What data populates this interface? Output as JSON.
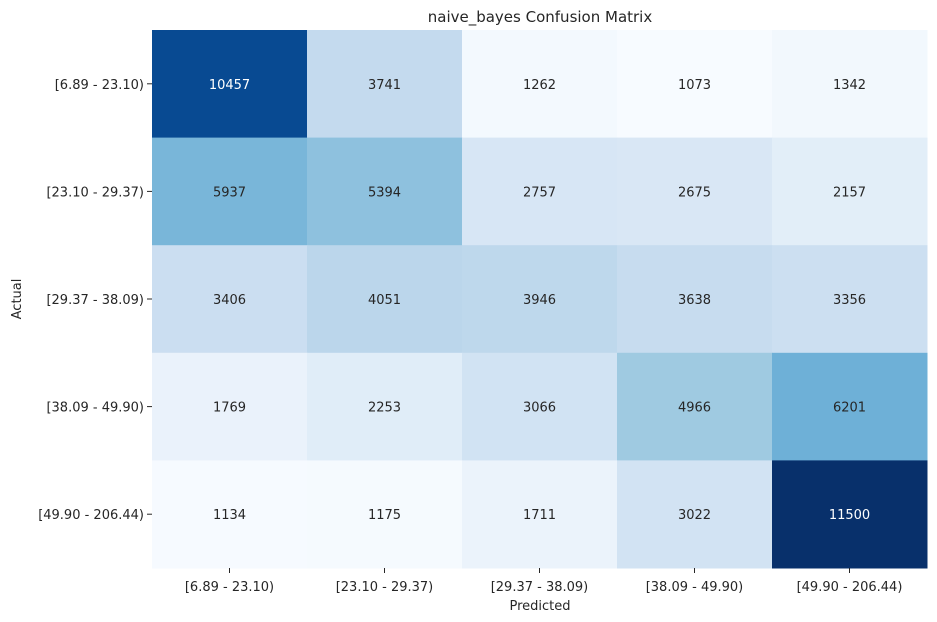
{
  "chart_data": {
    "type": "heatmap",
    "title": "naive_bayes Confusion Matrix",
    "xlabel": "Predicted",
    "ylabel": "Actual",
    "x_categories": [
      "[6.89 - 23.10)",
      "[23.10 - 29.37)",
      "[29.37 - 38.09)",
      "[38.09 - 49.90)",
      "[49.90 - 206.44)"
    ],
    "y_categories": [
      "[6.89 - 23.10)",
      "[23.10 - 29.37)",
      "[29.37 - 38.09)",
      "[38.09 - 49.90)",
      "[49.90 - 206.44)"
    ],
    "values": [
      [
        10457,
        3741,
        1262,
        1073,
        1342
      ],
      [
        5937,
        5394,
        2757,
        2675,
        2157
      ],
      [
        3406,
        4051,
        3946,
        3638,
        3356
      ],
      [
        1769,
        2253,
        3066,
        4966,
        6201
      ],
      [
        1134,
        1175,
        1711,
        3022,
        11500
      ]
    ],
    "colormap": "Blues",
    "colorbar": false,
    "grid": false
  }
}
